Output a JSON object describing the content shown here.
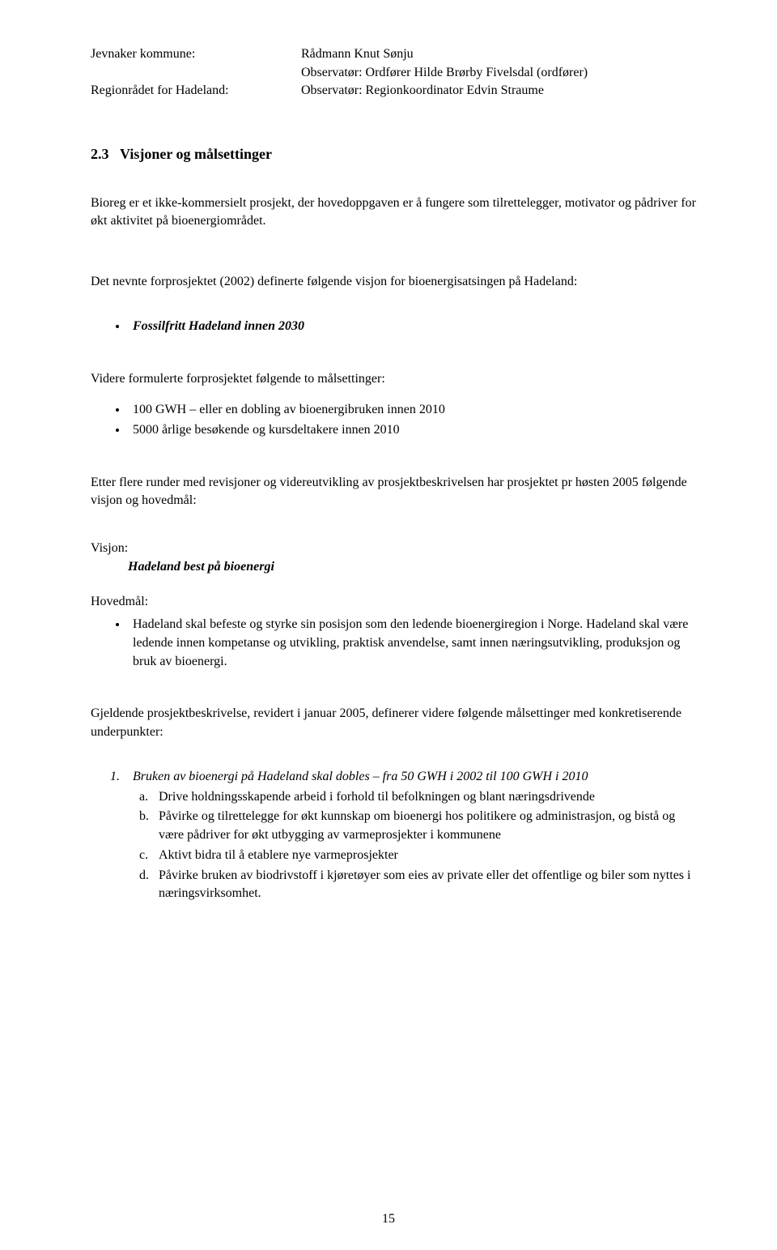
{
  "header": {
    "rows": [
      {
        "left": "Jevnaker kommune:",
        "right": "Rådmann Knut Sønju"
      },
      {
        "left": "",
        "right": "Observatør: Ordfører Hilde Brørby Fivelsdal (ordfører)"
      },
      {
        "left": "Regionrådet for Hadeland:",
        "right": "Observatør: Regionkoordinator Edvin Straume"
      }
    ]
  },
  "section": {
    "number": "2.3",
    "title": "Visjoner og målsettinger"
  },
  "intro": "Bioreg er et ikke-kommersielt prosjekt, der hovedoppgaven er å fungere som tilrettelegger, motivator og pådriver for økt aktivitet på bioenergiområdet.",
  "forprosjekt_lead": "Det nevnte forprosjektet (2002) definerte følgende visjon for bioenergisatsingen på Hadeland:",
  "vision_2030": "Fossilfritt Hadeland innen 2030",
  "further_lead": "Videre formulerte forprosjektet følgende to målsettinger:",
  "targets": [
    "100 GWH – eller en dobling av bioenergibruken innen 2010",
    "5000 årlige besøkende og kursdeltakere innen 2010"
  ],
  "after_revisions": "Etter flere runder med revisjoner og videreutvikling av prosjektbeskrivelsen har prosjektet pr høsten 2005 følgende visjon og hovedmål:",
  "visjon_label": "Visjon:",
  "visjon_text": "Hadeland best på bioenergi",
  "hovedmaal_label": "Hovedmål:",
  "hovedmaal_bullet": "Hadeland skal befeste og styrke sin posisjon som den ledende bioenergiregion i Norge. Hadeland skal være ledende innen kompetanse og utvikling, praktisk anvendelse, samt innen næringsutvikling, produksjon og bruk av bioenergi.",
  "gjeldende": "Gjeldende prosjektbeskrivelse, revidert i januar 2005, definerer videre følgende målsettinger med konkretiserende underpunkter:",
  "goal1": {
    "marker": "1.",
    "text": "Bruken av bioenergi på Hadeland skal dobles – fra 50 GWH i 2002 til 100 GWH i 2010",
    "subs": [
      {
        "m": "a.",
        "t": "Drive holdningsskapende arbeid i forhold til befolkningen og blant næringsdrivende"
      },
      {
        "m": "b.",
        "t": "Påvirke og tilrettelegge for økt kunnskap om bioenergi hos politikere og administrasjon, og bistå og være pådriver for økt utbygging av varmeprosjekter i kommunene"
      },
      {
        "m": "c.",
        "t": "Aktivt bidra til å etablere nye varmeprosjekter"
      },
      {
        "m": "d.",
        "t": "Påvirke bruken av biodrivstoff i kjøretøyer som eies av private eller det offentlige og biler som nyttes i næringsvirksomhet."
      }
    ]
  },
  "page_number": "15"
}
